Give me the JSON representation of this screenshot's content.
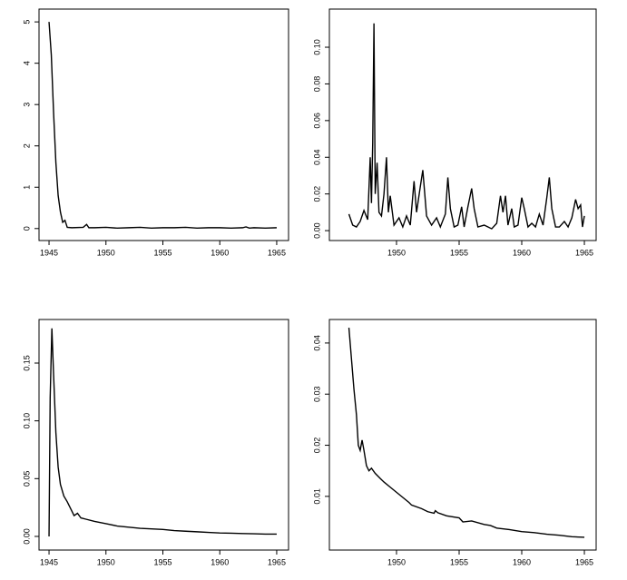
{
  "chart_data": [
    {
      "type": "line",
      "color": "#000000",
      "x": [
        1945.0,
        1945.2,
        1945.4,
        1945.6,
        1945.8,
        1946.0,
        1946.2,
        1946.4,
        1946.6,
        1947.0,
        1948.0,
        1948.3,
        1948.5,
        1949,
        1950,
        1951,
        1952,
        1953,
        1954,
        1955,
        1956,
        1957,
        1958,
        1959,
        1960,
        1961,
        1962,
        1962.3,
        1962.6,
        1963,
        1964,
        1965
      ],
      "values": [
        5,
        4.2,
        2.8,
        1.6,
        0.8,
        0.4,
        0.15,
        0.2,
        0.03,
        0.02,
        0.03,
        0.1,
        0.02,
        0.02,
        0.03,
        0.01,
        0.02,
        0.03,
        0.01,
        0.02,
        0.02,
        0.03,
        0.01,
        0.02,
        0.02,
        0.01,
        0.02,
        0.04,
        0.01,
        0.02,
        0.01,
        0.02
      ],
      "xlim": [
        1944.12,
        1966.04
      ],
      "ylim": [
        -0.29,
        5.31
      ],
      "xticks": [
        1945,
        1950,
        1955,
        1960,
        1965
      ],
      "yticks": [
        0,
        1,
        2,
        3,
        4,
        5
      ]
    },
    {
      "type": "line",
      "color": "#000000",
      "x": [
        1946.2,
        1946.5,
        1946.8,
        1947.1,
        1947.4,
        1947.7,
        1947.9,
        1948.0,
        1948.1,
        1948.2,
        1948.3,
        1948.45,
        1948.6,
        1948.8,
        1949.0,
        1949.2,
        1949.35,
        1949.5,
        1949.8,
        1950.2,
        1950.5,
        1950.8,
        1951.1,
        1951.4,
        1951.6,
        1951.9,
        1952.1,
        1952.4,
        1952.8,
        1953.2,
        1953.5,
        1953.9,
        1954.1,
        1954.3,
        1954.6,
        1954.9,
        1955.2,
        1955.4,
        1955.7,
        1956.0,
        1956.2,
        1956.5,
        1957.0,
        1957.3,
        1957.6,
        1958.0,
        1958.3,
        1958.5,
        1958.7,
        1958.9,
        1959.2,
        1959.4,
        1959.7,
        1960.0,
        1960.2,
        1960.5,
        1960.8,
        1961.1,
        1961.4,
        1961.7,
        1962.0,
        1962.2,
        1962.4,
        1962.7,
        1963.0,
        1963.4,
        1963.7,
        1964.0,
        1964.3,
        1964.5,
        1964.7,
        1964.85,
        1965.0
      ],
      "values": [
        0.009,
        0.003,
        0.002,
        0.005,
        0.011,
        0.006,
        0.04,
        0.015,
        0.048,
        0.113,
        0.02,
        0.037,
        0.01,
        0.008,
        0.02,
        0.04,
        0.01,
        0.019,
        0.003,
        0.007,
        0.002,
        0.008,
        0.003,
        0.027,
        0.01,
        0.024,
        0.033,
        0.008,
        0.003,
        0.007,
        0.002,
        0.009,
        0.029,
        0.012,
        0.002,
        0.003,
        0.013,
        0.002,
        0.013,
        0.023,
        0.012,
        0.002,
        0.003,
        0.002,
        0.001,
        0.004,
        0.019,
        0.01,
        0.019,
        0.003,
        0.012,
        0.002,
        0.003,
        0.018,
        0.012,
        0.002,
        0.004,
        0.002,
        0.009,
        0.003,
        0.018,
        0.029,
        0.012,
        0.002,
        0.002,
        0.005,
        0.002,
        0.007,
        0.017,
        0.012,
        0.014,
        0.002,
        0.008
      ],
      "xlim": [
        1944.64,
        1965.94
      ],
      "ylim": [
        -0.0054,
        0.1208
      ],
      "xticks": [
        1950,
        1955,
        1960,
        1965
      ],
      "yticks": [
        {
          "value": 0,
          "label": "0.00"
        },
        0.02,
        0.04,
        0.06,
        0.08,
        {
          "value": 0.1,
          "label": "0.10"
        }
      ]
    },
    {
      "type": "line",
      "color": "#000000",
      "x": [
        1945.0,
        1945.1,
        1945.25,
        1945.4,
        1945.6,
        1945.8,
        1946.0,
        1946.3,
        1946.6,
        1947.0,
        1947.2,
        1947.5,
        1947.8,
        1948.2,
        1949,
        1950,
        1951,
        1952,
        1953,
        1954,
        1955,
        1956,
        1957,
        1958,
        1959,
        1960,
        1961,
        1962,
        1963,
        1964,
        1965
      ],
      "values": [
        0,
        0.12,
        0.18,
        0.14,
        0.09,
        0.06,
        0.045,
        0.035,
        0.03,
        0.022,
        0.018,
        0.02,
        0.016,
        0.015,
        0.013,
        0.011,
        0.009,
        0.008,
        0.007,
        0.0065,
        0.006,
        0.005,
        0.0045,
        0.004,
        0.0035,
        0.003,
        0.0028,
        0.0025,
        0.0023,
        0.002,
        0.002
      ],
      "xlim": [
        1944.12,
        1966.04
      ],
      "ylim": [
        -0.0118,
        0.1877
      ],
      "xticks": [
        1945,
        1950,
        1955,
        1960,
        1965
      ],
      "yticks": [
        {
          "value": 0,
          "label": "0.00"
        },
        0.05,
        {
          "value": 0.1,
          "label": "0.10"
        },
        0.15
      ]
    },
    {
      "type": "line",
      "color": "#000000",
      "x": [
        1946.2,
        1946.4,
        1946.6,
        1946.8,
        1946.95,
        1947.1,
        1947.25,
        1947.4,
        1947.6,
        1947.8,
        1948.0,
        1948.3,
        1948.7,
        1949.0,
        1949.5,
        1950,
        1950.5,
        1951,
        1951.2,
        1952,
        1952.5,
        1953,
        1953.1,
        1953.3,
        1954,
        1955,
        1955.3,
        1956,
        1957,
        1957.5,
        1958,
        1959,
        1960,
        1961,
        1962,
        1963,
        1964,
        1965
      ],
      "values": [
        0.043,
        0.037,
        0.031,
        0.026,
        0.02,
        0.019,
        0.021,
        0.019,
        0.016,
        0.015,
        0.0155,
        0.0145,
        0.0135,
        0.0128,
        0.0118,
        0.0108,
        0.0098,
        0.0088,
        0.0083,
        0.0076,
        0.007,
        0.0067,
        0.0072,
        0.0068,
        0.0062,
        0.0058,
        0.005,
        0.0052,
        0.0045,
        0.0043,
        0.0038,
        0.0035,
        0.0031,
        0.0029,
        0.0026,
        0.0024,
        0.0021,
        0.002
      ],
      "xlim": [
        1944.64,
        1965.94
      ],
      "ylim": [
        -0.0005,
        0.0446
      ],
      "xticks": [
        1950,
        1955,
        1960,
        1965
      ],
      "yticks": [
        0.01,
        0.02,
        0.03,
        0.04
      ]
    }
  ]
}
